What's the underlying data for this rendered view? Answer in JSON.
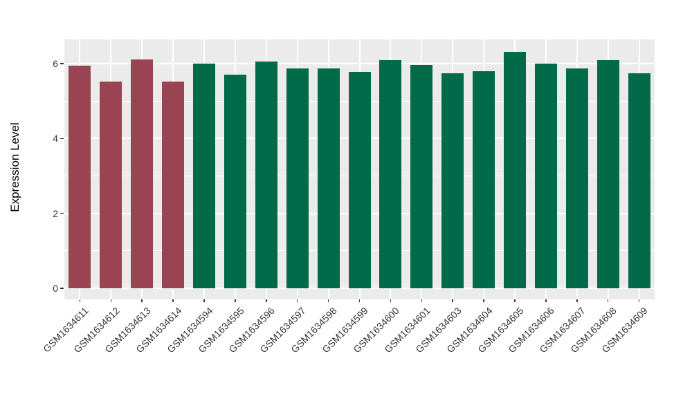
{
  "chart_data": {
    "type": "bar",
    "title": "",
    "xlabel": "",
    "ylabel": "Expression Level",
    "categories": [
      "GSM1634611",
      "GSM1634612",
      "GSM1634613",
      "GSM1634614",
      "GSM1634594",
      "GSM1634595",
      "GSM1634596",
      "GSM1634597",
      "GSM1634598",
      "GSM1634599",
      "GSM1634600",
      "GSM1634601",
      "GSM1634603",
      "GSM1634604",
      "GSM1634605",
      "GSM1634606",
      "GSM1634607",
      "GSM1634608",
      "GSM1634609"
    ],
    "values": [
      5.95,
      5.52,
      6.12,
      5.52,
      6.0,
      5.7,
      6.05,
      5.88,
      5.88,
      5.78,
      6.1,
      5.96,
      5.75,
      5.8,
      6.32,
      6.0,
      5.88,
      6.1,
      5.75
    ],
    "bar_groups": [
      "group1",
      "group1",
      "group1",
      "group1",
      "group2",
      "group2",
      "group2",
      "group2",
      "group2",
      "group2",
      "group2",
      "group2",
      "group2",
      "group2",
      "group2",
      "group2",
      "group2",
      "group2",
      "group2"
    ],
    "group_colors": {
      "group1": "#9A4453",
      "group2": "#006A49"
    },
    "yticks": [
      0,
      2,
      4,
      6
    ],
    "yticks_minor": [
      1,
      3,
      5
    ],
    "ylim": [
      -0.3,
      6.65
    ],
    "grid": true,
    "legend": "none",
    "panel_background": "#EBEBEB",
    "grid_color": "#FFFFFF",
    "axis_text_color": "#333333"
  }
}
